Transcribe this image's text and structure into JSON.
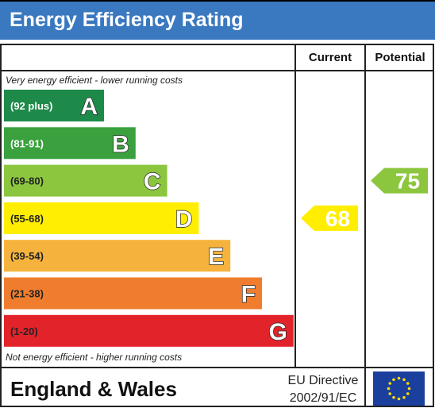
{
  "title": "Energy Efficiency Rating",
  "columns": {
    "current": "Current",
    "potential": "Potential"
  },
  "notes": {
    "top": "Very energy efficient - lower running costs",
    "bottom": "Not energy efficient - higher running costs"
  },
  "footer": {
    "region": "England & Wales",
    "directive_line1": "EU Directive",
    "directive_line2": "2002/91/EC",
    "flag_icon": "eu-flag-icon"
  },
  "chart_data": {
    "type": "bar",
    "title": "Energy Efficiency Rating",
    "categories": [
      "A",
      "B",
      "C",
      "D",
      "E",
      "F",
      "G"
    ],
    "ranges": [
      "(92 plus)",
      "(81-91)",
      "(69-80)",
      "(55-68)",
      "(39-54)",
      "(21-38)",
      "(1-20)"
    ],
    "colors": [
      "#1d8a4a",
      "#3aa13e",
      "#8cc63f",
      "#ffee00",
      "#f5b33d",
      "#ef7d2d",
      "#e3232a"
    ],
    "range_text_colors": [
      "#ffffff",
      "#ffffff",
      "#222222",
      "#222222",
      "#222222",
      "#222222",
      "#222222"
    ],
    "current": {
      "label": "Current",
      "value": 68,
      "band": "D",
      "color": "#ffee00"
    },
    "potential": {
      "label": "Potential",
      "value": 75,
      "band": "C",
      "color": "#8cc63f"
    }
  }
}
